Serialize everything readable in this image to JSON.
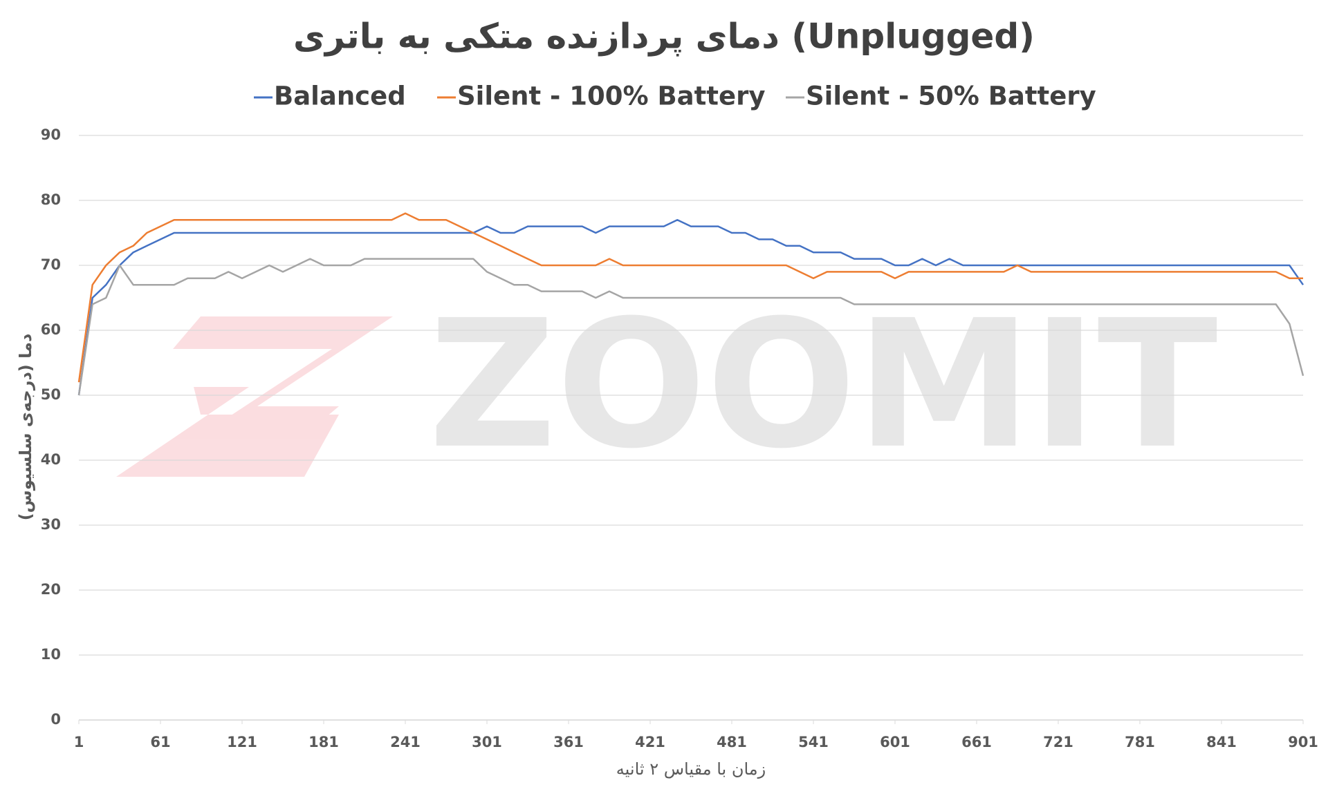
{
  "chart_data": {
    "type": "line",
    "title": "دمای پردازنده متکی به باتری (Unplugged)",
    "x_label": "زمان با مقیاس ۲ ثانیه",
    "y_label": "دما (درجه‌ی سلسیوس)",
    "watermark": "ZOOMIT",
    "x": [
      1,
      11,
      21,
      31,
      41,
      51,
      61,
      71,
      81,
      91,
      101,
      111,
      121,
      131,
      141,
      151,
      161,
      171,
      181,
      191,
      201,
      211,
      221,
      231,
      241,
      251,
      261,
      271,
      281,
      291,
      301,
      311,
      321,
      331,
      341,
      351,
      361,
      371,
      381,
      391,
      401,
      411,
      421,
      431,
      441,
      451,
      461,
      471,
      481,
      491,
      501,
      511,
      521,
      531,
      541,
      551,
      561,
      571,
      581,
      591,
      601,
      611,
      621,
      631,
      641,
      651,
      661,
      671,
      681,
      691,
      701,
      711,
      721,
      731,
      741,
      751,
      761,
      771,
      781,
      791,
      801,
      811,
      821,
      831,
      841,
      851,
      861,
      871,
      881,
      891,
      901
    ],
    "series": [
      {
        "name": "Balanced",
        "color": "#4472c4",
        "values": [
          50,
          65,
          67,
          70,
          72,
          73,
          74,
          75,
          75,
          75,
          75,
          75,
          75,
          75,
          75,
          75,
          75,
          75,
          75,
          75,
          75,
          75,
          75,
          75,
          75,
          75,
          75,
          75,
          75,
          75,
          76,
          75,
          75,
          76,
          76,
          76,
          76,
          76,
          75,
          76,
          76,
          76,
          76,
          76,
          77,
          76,
          76,
          76,
          75,
          75,
          74,
          74,
          73,
          73,
          72,
          72,
          72,
          71,
          71,
          71,
          70,
          70,
          71,
          70,
          71,
          70,
          70,
          70,
          70,
          70,
          70,
          70,
          70,
          70,
          70,
          70,
          70,
          70,
          70,
          70,
          70,
          70,
          70,
          70,
          70,
          70,
          70,
          70,
          70,
          70,
          67
        ]
      },
      {
        "name": "Silent - 100% Battery",
        "color": "#ed7d31",
        "values": [
          52,
          67,
          70,
          72,
          73,
          75,
          76,
          77,
          77,
          77,
          77,
          77,
          77,
          77,
          77,
          77,
          77,
          77,
          77,
          77,
          77,
          77,
          77,
          77,
          78,
          77,
          77,
          77,
          76,
          75,
          74,
          73,
          72,
          71,
          70,
          70,
          70,
          70,
          70,
          71,
          70,
          70,
          70,
          70,
          70,
          70,
          70,
          70,
          70,
          70,
          70,
          70,
          70,
          69,
          68,
          69,
          69,
          69,
          69,
          69,
          68,
          69,
          69,
          69,
          69,
          69,
          69,
          69,
          69,
          70,
          69,
          69,
          69,
          69,
          69,
          69,
          69,
          69,
          69,
          69,
          69,
          69,
          69,
          69,
          69,
          69,
          69,
          69,
          69,
          68,
          68
        ]
      },
      {
        "name": "Silent - 50% Battery",
        "color": "#a5a5a5",
        "values": [
          50,
          64,
          65,
          70,
          67,
          67,
          67,
          67,
          68,
          68,
          68,
          69,
          68,
          69,
          70,
          69,
          70,
          71,
          70,
          70,
          70,
          71,
          71,
          71,
          71,
          71,
          71,
          71,
          71,
          71,
          69,
          68,
          67,
          67,
          66,
          66,
          66,
          66,
          65,
          66,
          65,
          65,
          65,
          65,
          65,
          65,
          65,
          65,
          65,
          65,
          65,
          65,
          65,
          65,
          65,
          65,
          65,
          64,
          64,
          64,
          64,
          64,
          64,
          64,
          64,
          64,
          64,
          64,
          64,
          64,
          64,
          64,
          64,
          64,
          64,
          64,
          64,
          64,
          64,
          64,
          64,
          64,
          64,
          64,
          64,
          64,
          64,
          64,
          64,
          61,
          53
        ]
      }
    ],
    "xlim": [
      1,
      901
    ],
    "xticks": [
      1,
      61,
      121,
      181,
      241,
      301,
      361,
      421,
      481,
      541,
      601,
      661,
      721,
      781,
      841,
      901
    ],
    "ylim": [
      0,
      90
    ],
    "yticks": [
      0,
      10,
      20,
      30,
      40,
      50,
      60,
      70,
      80,
      90
    ],
    "grid": true,
    "legend": "top"
  }
}
